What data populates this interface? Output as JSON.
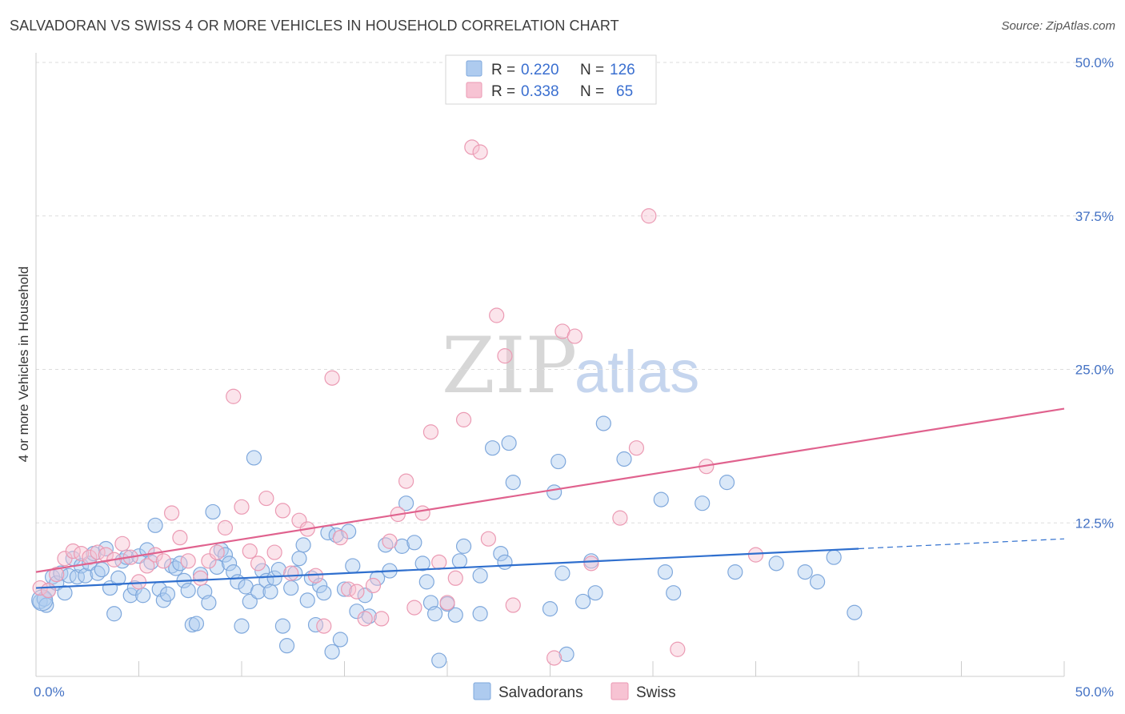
{
  "header": {
    "title": "SALVADORAN VS SWISS 4 OR MORE VEHICLES IN HOUSEHOLD CORRELATION CHART",
    "source": "Source: ZipAtlas.com"
  },
  "watermark": {
    "zip": "ZIP",
    "atlas": "atlas"
  },
  "colors": {
    "blue_fill": "#aecbef",
    "blue_stroke": "#7fa8dc",
    "blue_line": "#2f6fce",
    "pink_fill": "#f7c3d3",
    "pink_stroke": "#eb9ab3",
    "pink_line": "#e0628e",
    "tick_label": "#4472c4",
    "grid": "#dddddd"
  },
  "legend": {
    "rows": [
      {
        "r_label": "R =",
        "r_value": "0.220",
        "n_label": "N =",
        "n_value": "126"
      },
      {
        "r_label": "R =",
        "r_value": "0.338",
        "n_label": "N =",
        "n_value": "65"
      }
    ]
  },
  "bottom_legend": {
    "items": [
      "Salvadorans",
      "Swiss"
    ]
  },
  "chart_data": {
    "type": "scatter",
    "title": "SALVADORAN VS SWISS 4 OR MORE VEHICLES IN HOUSEHOLD CORRELATION CHART",
    "xlabel": "",
    "ylabel": "4 or more Vehicles in Household",
    "xlim": [
      0,
      50
    ],
    "ylim": [
      0,
      50
    ],
    "x_tick_labels": [
      "0.0%",
      "50.0%"
    ],
    "y_ticks": [
      12.5,
      25.0,
      37.5,
      50.0
    ],
    "y_tick_labels": [
      "12.5%",
      "25.0%",
      "37.5%",
      "50.0%"
    ],
    "grid": true,
    "legend_position": "top-center",
    "series": [
      {
        "name": "Salvadorans",
        "color": "#aecbef",
        "trend": {
          "x": [
            0,
            40
          ],
          "y": [
            7.2,
            10.4
          ],
          "dashed_extension_to": [
            50,
            11.2
          ]
        },
        "points": [
          [
            0.2,
            6.1
          ],
          [
            0.4,
            6.3
          ],
          [
            0.5,
            5.8
          ],
          [
            0.6,
            7.0
          ],
          [
            0.8,
            8.1
          ],
          [
            1.0,
            7.6
          ],
          [
            1.2,
            8.4
          ],
          [
            1.4,
            6.8
          ],
          [
            1.6,
            8.2
          ],
          [
            1.8,
            9.6
          ],
          [
            2.0,
            8.1
          ],
          [
            2.2,
            9.0
          ],
          [
            2.4,
            8.2
          ],
          [
            2.6,
            9.2
          ],
          [
            2.8,
            10.0
          ],
          [
            3.0,
            8.4
          ],
          [
            3.2,
            8.7
          ],
          [
            3.4,
            10.4
          ],
          [
            3.6,
            7.2
          ],
          [
            3.8,
            5.1
          ],
          [
            4.0,
            8.0
          ],
          [
            4.2,
            9.4
          ],
          [
            4.4,
            9.7
          ],
          [
            4.6,
            6.6
          ],
          [
            4.8,
            7.2
          ],
          [
            5.0,
            9.8
          ],
          [
            5.2,
            6.6
          ],
          [
            5.4,
            10.3
          ],
          [
            5.6,
            9.3
          ],
          [
            5.8,
            12.3
          ],
          [
            6.0,
            7.1
          ],
          [
            6.2,
            6.2
          ],
          [
            6.4,
            6.7
          ],
          [
            6.6,
            9.0
          ],
          [
            6.8,
            8.8
          ],
          [
            7.0,
            9.2
          ],
          [
            7.2,
            7.8
          ],
          [
            7.4,
            7.0
          ],
          [
            7.6,
            4.2
          ],
          [
            7.8,
            4.3
          ],
          [
            8.0,
            8.3
          ],
          [
            8.2,
            6.9
          ],
          [
            8.4,
            6.0
          ],
          [
            8.6,
            13.4
          ],
          [
            8.8,
            8.9
          ],
          [
            9.0,
            10.3
          ],
          [
            9.2,
            9.9
          ],
          [
            9.4,
            9.2
          ],
          [
            9.6,
            8.5
          ],
          [
            9.8,
            7.7
          ],
          [
            10.0,
            4.1
          ],
          [
            10.2,
            7.3
          ],
          [
            10.4,
            6.1
          ],
          [
            10.6,
            17.8
          ],
          [
            10.8,
            6.9
          ],
          [
            11.0,
            8.6
          ],
          [
            11.2,
            7.8
          ],
          [
            11.4,
            6.9
          ],
          [
            11.6,
            8.0
          ],
          [
            11.8,
            8.7
          ],
          [
            12.0,
            4.1
          ],
          [
            12.2,
            2.5
          ],
          [
            12.4,
            7.2
          ],
          [
            12.6,
            8.4
          ],
          [
            12.8,
            9.6
          ],
          [
            13.0,
            10.7
          ],
          [
            13.2,
            6.2
          ],
          [
            13.4,
            8.0
          ],
          [
            13.6,
            4.2
          ],
          [
            13.8,
            7.4
          ],
          [
            14.0,
            6.8
          ],
          [
            14.2,
            11.7
          ],
          [
            14.4,
            2.0
          ],
          [
            14.6,
            11.5
          ],
          [
            14.8,
            3.0
          ],
          [
            15.0,
            7.1
          ],
          [
            15.2,
            11.8
          ],
          [
            15.4,
            9.0
          ],
          [
            15.6,
            5.3
          ],
          [
            16.0,
            6.6
          ],
          [
            16.2,
            4.9
          ],
          [
            16.6,
            8.0
          ],
          [
            17.0,
            10.7
          ],
          [
            17.2,
            8.6
          ],
          [
            17.8,
            10.6
          ],
          [
            18.0,
            14.1
          ],
          [
            18.4,
            10.9
          ],
          [
            18.8,
            9.2
          ],
          [
            19.0,
            7.7
          ],
          [
            19.2,
            6.0
          ],
          [
            19.4,
            5.1
          ],
          [
            19.6,
            1.3
          ],
          [
            20.0,
            5.9
          ],
          [
            20.4,
            5.0
          ],
          [
            20.6,
            9.4
          ],
          [
            20.8,
            10.6
          ],
          [
            21.6,
            5.1
          ],
          [
            21.6,
            8.2
          ],
          [
            22.2,
            18.6
          ],
          [
            22.6,
            10.0
          ],
          [
            22.8,
            9.3
          ],
          [
            23.0,
            19.0
          ],
          [
            23.2,
            15.8
          ],
          [
            25.0,
            5.5
          ],
          [
            25.2,
            15.0
          ],
          [
            25.4,
            17.5
          ],
          [
            25.6,
            8.4
          ],
          [
            25.8,
            1.8
          ],
          [
            26.6,
            6.1
          ],
          [
            27.0,
            9.4
          ],
          [
            27.2,
            6.8
          ],
          [
            27.6,
            20.6
          ],
          [
            28.6,
            17.7
          ],
          [
            30.4,
            14.4
          ],
          [
            30.6,
            8.5
          ],
          [
            31.0,
            6.8
          ],
          [
            32.4,
            14.1
          ],
          [
            33.6,
            15.8
          ],
          [
            34.0,
            8.5
          ],
          [
            36.0,
            9.2
          ],
          [
            37.4,
            8.5
          ],
          [
            38.0,
            7.7
          ],
          [
            38.8,
            9.7
          ],
          [
            39.8,
            5.2
          ]
        ]
      },
      {
        "name": "Swiss",
        "color": "#f7c3d3",
        "trend": {
          "x": [
            0,
            50
          ],
          "y": [
            8.5,
            21.8
          ]
        },
        "points": [
          [
            0.2,
            7.2
          ],
          [
            0.6,
            7.0
          ],
          [
            1.0,
            8.3
          ],
          [
            1.4,
            9.6
          ],
          [
            1.8,
            10.2
          ],
          [
            2.2,
            10.0
          ],
          [
            2.6,
            9.7
          ],
          [
            3.0,
            10.1
          ],
          [
            3.4,
            9.9
          ],
          [
            3.8,
            9.5
          ],
          [
            4.2,
            10.8
          ],
          [
            4.6,
            9.7
          ],
          [
            5.0,
            7.7
          ],
          [
            5.4,
            9.0
          ],
          [
            5.8,
            9.9
          ],
          [
            6.2,
            9.4
          ],
          [
            6.6,
            13.3
          ],
          [
            7.0,
            11.3
          ],
          [
            7.4,
            9.4
          ],
          [
            8.0,
            8.0
          ],
          [
            8.4,
            9.4
          ],
          [
            8.8,
            10.1
          ],
          [
            9.2,
            12.1
          ],
          [
            9.6,
            22.8
          ],
          [
            10.0,
            13.8
          ],
          [
            10.4,
            10.2
          ],
          [
            10.8,
            9.2
          ],
          [
            11.2,
            14.5
          ],
          [
            11.6,
            10.1
          ],
          [
            12.0,
            13.5
          ],
          [
            12.4,
            8.4
          ],
          [
            12.8,
            12.7
          ],
          [
            13.2,
            12.0
          ],
          [
            13.6,
            8.2
          ],
          [
            14.0,
            4.1
          ],
          [
            14.4,
            24.3
          ],
          [
            14.8,
            11.3
          ],
          [
            15.2,
            7.1
          ],
          [
            15.6,
            6.9
          ],
          [
            16.0,
            4.7
          ],
          [
            16.4,
            7.4
          ],
          [
            16.8,
            4.7
          ],
          [
            17.2,
            11.0
          ],
          [
            17.6,
            13.2
          ],
          [
            18.0,
            15.9
          ],
          [
            18.4,
            5.6
          ],
          [
            18.8,
            13.3
          ],
          [
            19.2,
            19.9
          ],
          [
            19.6,
            9.3
          ],
          [
            20.0,
            6.0
          ],
          [
            20.4,
            8.0
          ],
          [
            20.8,
            20.9
          ],
          [
            21.2,
            43.1
          ],
          [
            21.6,
            42.7
          ],
          [
            22.0,
            11.2
          ],
          [
            22.4,
            29.4
          ],
          [
            22.8,
            26.1
          ],
          [
            23.2,
            5.8
          ],
          [
            25.2,
            1.5
          ],
          [
            25.6,
            28.1
          ],
          [
            26.2,
            27.7
          ],
          [
            27.0,
            9.2
          ],
          [
            28.4,
            12.9
          ],
          [
            29.2,
            18.6
          ],
          [
            29.8,
            37.5
          ],
          [
            31.2,
            2.2
          ],
          [
            32.6,
            17.1
          ],
          [
            35.0,
            9.9
          ]
        ]
      }
    ]
  }
}
